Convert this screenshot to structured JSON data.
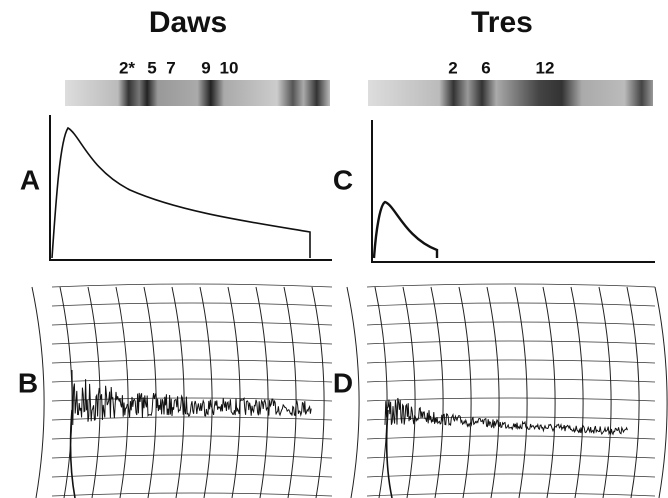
{
  "columns": [
    {
      "title": "Daws",
      "bands": [
        "2*",
        "5",
        "7",
        "9",
        "10"
      ]
    },
    {
      "title": "Tres",
      "bands": [
        "2",
        "6",
        "12"
      ]
    }
  ],
  "panel_labels": [
    "A",
    "B",
    "C",
    "D"
  ]
}
